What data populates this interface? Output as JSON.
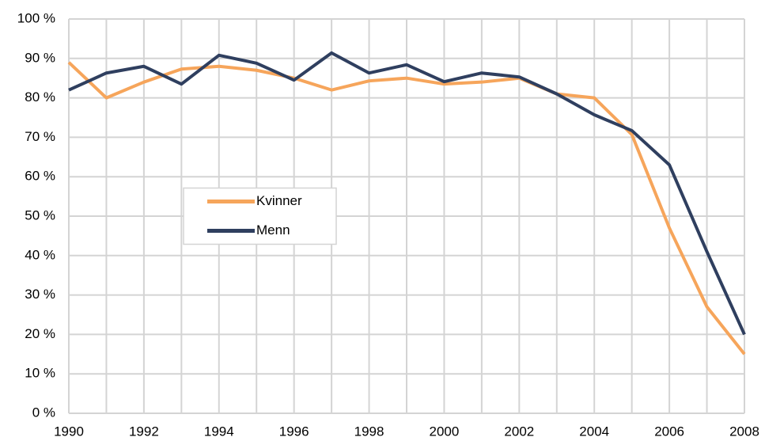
{
  "chart_data": {
    "type": "line",
    "x": [
      1990,
      1991,
      1992,
      1993,
      1994,
      1995,
      1996,
      1997,
      1998,
      1999,
      2000,
      2001,
      2002,
      2003,
      2004,
      2005,
      2006,
      2007,
      2008
    ],
    "series": [
      {
        "name": "Kvinner",
        "color": "#f6a55b",
        "values": [
          89,
          80,
          84,
          87.3,
          88,
          87,
          85,
          82,
          84.3,
          85,
          83.5,
          84,
          85,
          81,
          80,
          70.7,
          47,
          27,
          15
        ]
      },
      {
        "name": "Menn",
        "color": "#2f3f5f",
        "values": [
          82,
          86.3,
          88,
          83.5,
          90.8,
          88.8,
          84.5,
          91.4,
          86.3,
          88.4,
          84.1,
          86.3,
          85.3,
          81,
          75.7,
          71.7,
          63,
          41,
          20
        ]
      }
    ],
    "xlim": [
      1990,
      2008
    ],
    "xticks": [
      1990,
      1992,
      1994,
      1996,
      1998,
      2000,
      2002,
      2004,
      2006,
      2008
    ],
    "ylim": [
      0,
      100
    ],
    "yticks": [
      {
        "value": 0,
        "label": "0 %"
      },
      {
        "value": 10,
        "label": "10 %"
      },
      {
        "value": 20,
        "label": "20 %"
      },
      {
        "value": 30,
        "label": "30 %"
      },
      {
        "value": 40,
        "label": "40 %"
      },
      {
        "value": 50,
        "label": "50 %"
      },
      {
        "value": 60,
        "label": "60 %"
      },
      {
        "value": 70,
        "label": "70 %"
      },
      {
        "value": 80,
        "label": "80 %"
      },
      {
        "value": 90,
        "label": "90 %"
      },
      {
        "value": 100,
        "label": "100 %"
      }
    ],
    "grid": true,
    "legend": "center-left"
  }
}
